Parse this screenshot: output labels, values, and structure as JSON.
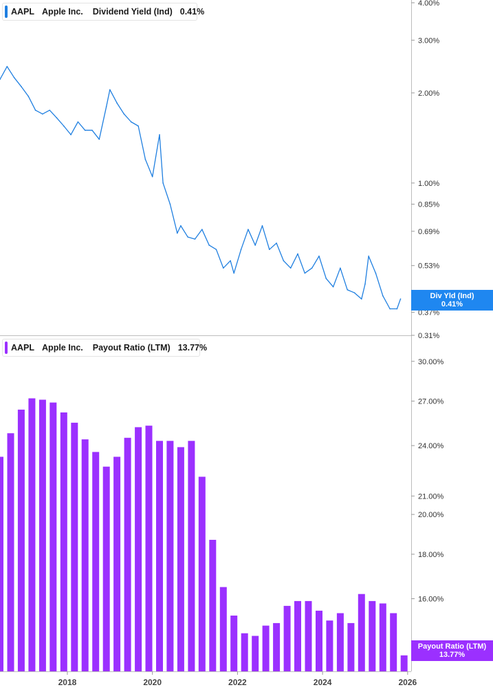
{
  "chart_data": [
    {
      "type": "line",
      "legend": {
        "ticker": "AAPL",
        "company": "Apple Inc.",
        "metric": "Dividend Yield (Ind)",
        "value": "0.41%"
      },
      "tag": {
        "label": "Div Yld (Ind)",
        "value": "0.41%"
      },
      "color": "#1f7fe0",
      "scale": "log",
      "ylim": [
        0.31,
        4.0
      ],
      "y_ticks": [
        {
          "value": 4.0,
          "label": "4.00%"
        },
        {
          "value": 3.0,
          "label": "3.00%"
        },
        {
          "value": 2.0,
          "label": "2.00%"
        },
        {
          "value": 1.0,
          "label": "1.00%"
        },
        {
          "value": 0.85,
          "label": "0.85%"
        },
        {
          "value": 0.69,
          "label": "0.69%"
        },
        {
          "value": 0.53,
          "label": "0.53%"
        },
        {
          "value": 0.37,
          "label": "0.37%"
        },
        {
          "value": 0.31,
          "label": "0.31%"
        }
      ],
      "x": [
        "2016-06",
        "2016-08",
        "2016-10",
        "2016-12",
        "2017-02",
        "2017-04",
        "2017-06",
        "2017-08",
        "2017-10",
        "2017-12",
        "2018-02",
        "2018-04",
        "2018-06",
        "2018-08",
        "2018-10",
        "2018-12",
        "2019-01",
        "2019-03",
        "2019-05",
        "2019-07",
        "2019-09",
        "2019-11",
        "2020-01",
        "2020-03",
        "2020-04",
        "2020-06",
        "2020-08",
        "2020-09",
        "2020-11",
        "2021-01",
        "2021-03",
        "2021-05",
        "2021-07",
        "2021-09",
        "2021-11",
        "2021-12",
        "2022-02",
        "2022-04",
        "2022-06",
        "2022-08",
        "2022-10",
        "2022-12",
        "2023-02",
        "2023-04",
        "2023-06",
        "2023-08",
        "2023-10",
        "2023-12",
        "2024-02",
        "2024-04",
        "2024-06",
        "2024-08",
        "2024-10",
        "2024-12",
        "2025-01",
        "2025-02",
        "2025-04",
        "2025-06",
        "2025-08",
        "2025-10",
        "2025-11"
      ],
      "y": [
        2.22,
        2.45,
        2.25,
        2.1,
        1.95,
        1.75,
        1.7,
        1.75,
        1.65,
        1.55,
        1.45,
        1.6,
        1.5,
        1.5,
        1.4,
        1.8,
        2.05,
        1.85,
        1.7,
        1.6,
        1.55,
        1.2,
        1.05,
        1.45,
        1.0,
        0.85,
        0.68,
        0.72,
        0.66,
        0.65,
        0.7,
        0.62,
        0.6,
        0.52,
        0.55,
        0.5,
        0.6,
        0.7,
        0.62,
        0.72,
        0.6,
        0.63,
        0.55,
        0.52,
        0.58,
        0.5,
        0.52,
        0.57,
        0.48,
        0.45,
        0.52,
        0.44,
        0.43,
        0.41,
        0.46,
        0.57,
        0.5,
        0.42,
        0.38,
        0.38,
        0.41
      ]
    },
    {
      "type": "bar",
      "legend": {
        "ticker": "AAPL",
        "company": "Apple Inc.",
        "metric": "Payout Ratio (LTM)",
        "value": "13.77%"
      },
      "tag": {
        "label": "Payout Ratio (LTM)",
        "value": "13.77%"
      },
      "color": "#9b30ff",
      "scale": "log",
      "ylim": [
        13.2,
        31.5
      ],
      "y_ticks": [
        {
          "value": 30.0,
          "label": "30.00%"
        },
        {
          "value": 27.0,
          "label": "27.00%"
        },
        {
          "value": 24.0,
          "label": "24.00%"
        },
        {
          "value": 21.0,
          "label": "21.00%"
        },
        {
          "value": 20.0,
          "label": "20.00%"
        },
        {
          "value": 18.0,
          "label": "18.00%"
        },
        {
          "value": 16.0,
          "label": "16.00%"
        }
      ],
      "x": [
        "2016-06",
        "2016-09",
        "2016-12",
        "2017-03",
        "2017-06",
        "2017-09",
        "2017-12",
        "2018-03",
        "2018-06",
        "2018-09",
        "2018-12",
        "2019-03",
        "2019-06",
        "2019-09",
        "2019-12",
        "2020-03",
        "2020-06",
        "2020-09",
        "2020-12",
        "2021-03",
        "2021-06",
        "2021-09",
        "2021-12",
        "2022-03",
        "2022-06",
        "2022-09",
        "2022-12",
        "2023-03",
        "2023-06",
        "2023-09",
        "2023-12",
        "2024-03",
        "2024-06",
        "2024-09",
        "2024-12",
        "2025-03",
        "2025-06",
        "2025-09"
      ],
      "values": [
        23.3,
        24.8,
        26.4,
        27.2,
        27.1,
        26.9,
        26.2,
        25.5,
        24.4,
        23.6,
        22.7,
        23.3,
        24.5,
        25.2,
        25.3,
        24.3,
        24.3,
        23.9,
        24.3,
        22.1,
        18.7,
        16.5,
        15.3,
        14.6,
        14.5,
        14.9,
        15.0,
        15.7,
        15.9,
        15.9,
        15.5,
        15.1,
        15.4,
        15.0,
        16.2,
        15.9,
        15.8,
        15.4
      ],
      "last_value": 13.77
    }
  ],
  "x_axis": {
    "start": "2016-06",
    "end": "2026-02",
    "ticks": [
      {
        "date": "2018-01",
        "label": "2018"
      },
      {
        "date": "2020-01",
        "label": "2020"
      },
      {
        "date": "2022-01",
        "label": "2022"
      },
      {
        "date": "2024-01",
        "label": "2024"
      },
      {
        "date": "2026-01",
        "label": "2026"
      }
    ]
  }
}
